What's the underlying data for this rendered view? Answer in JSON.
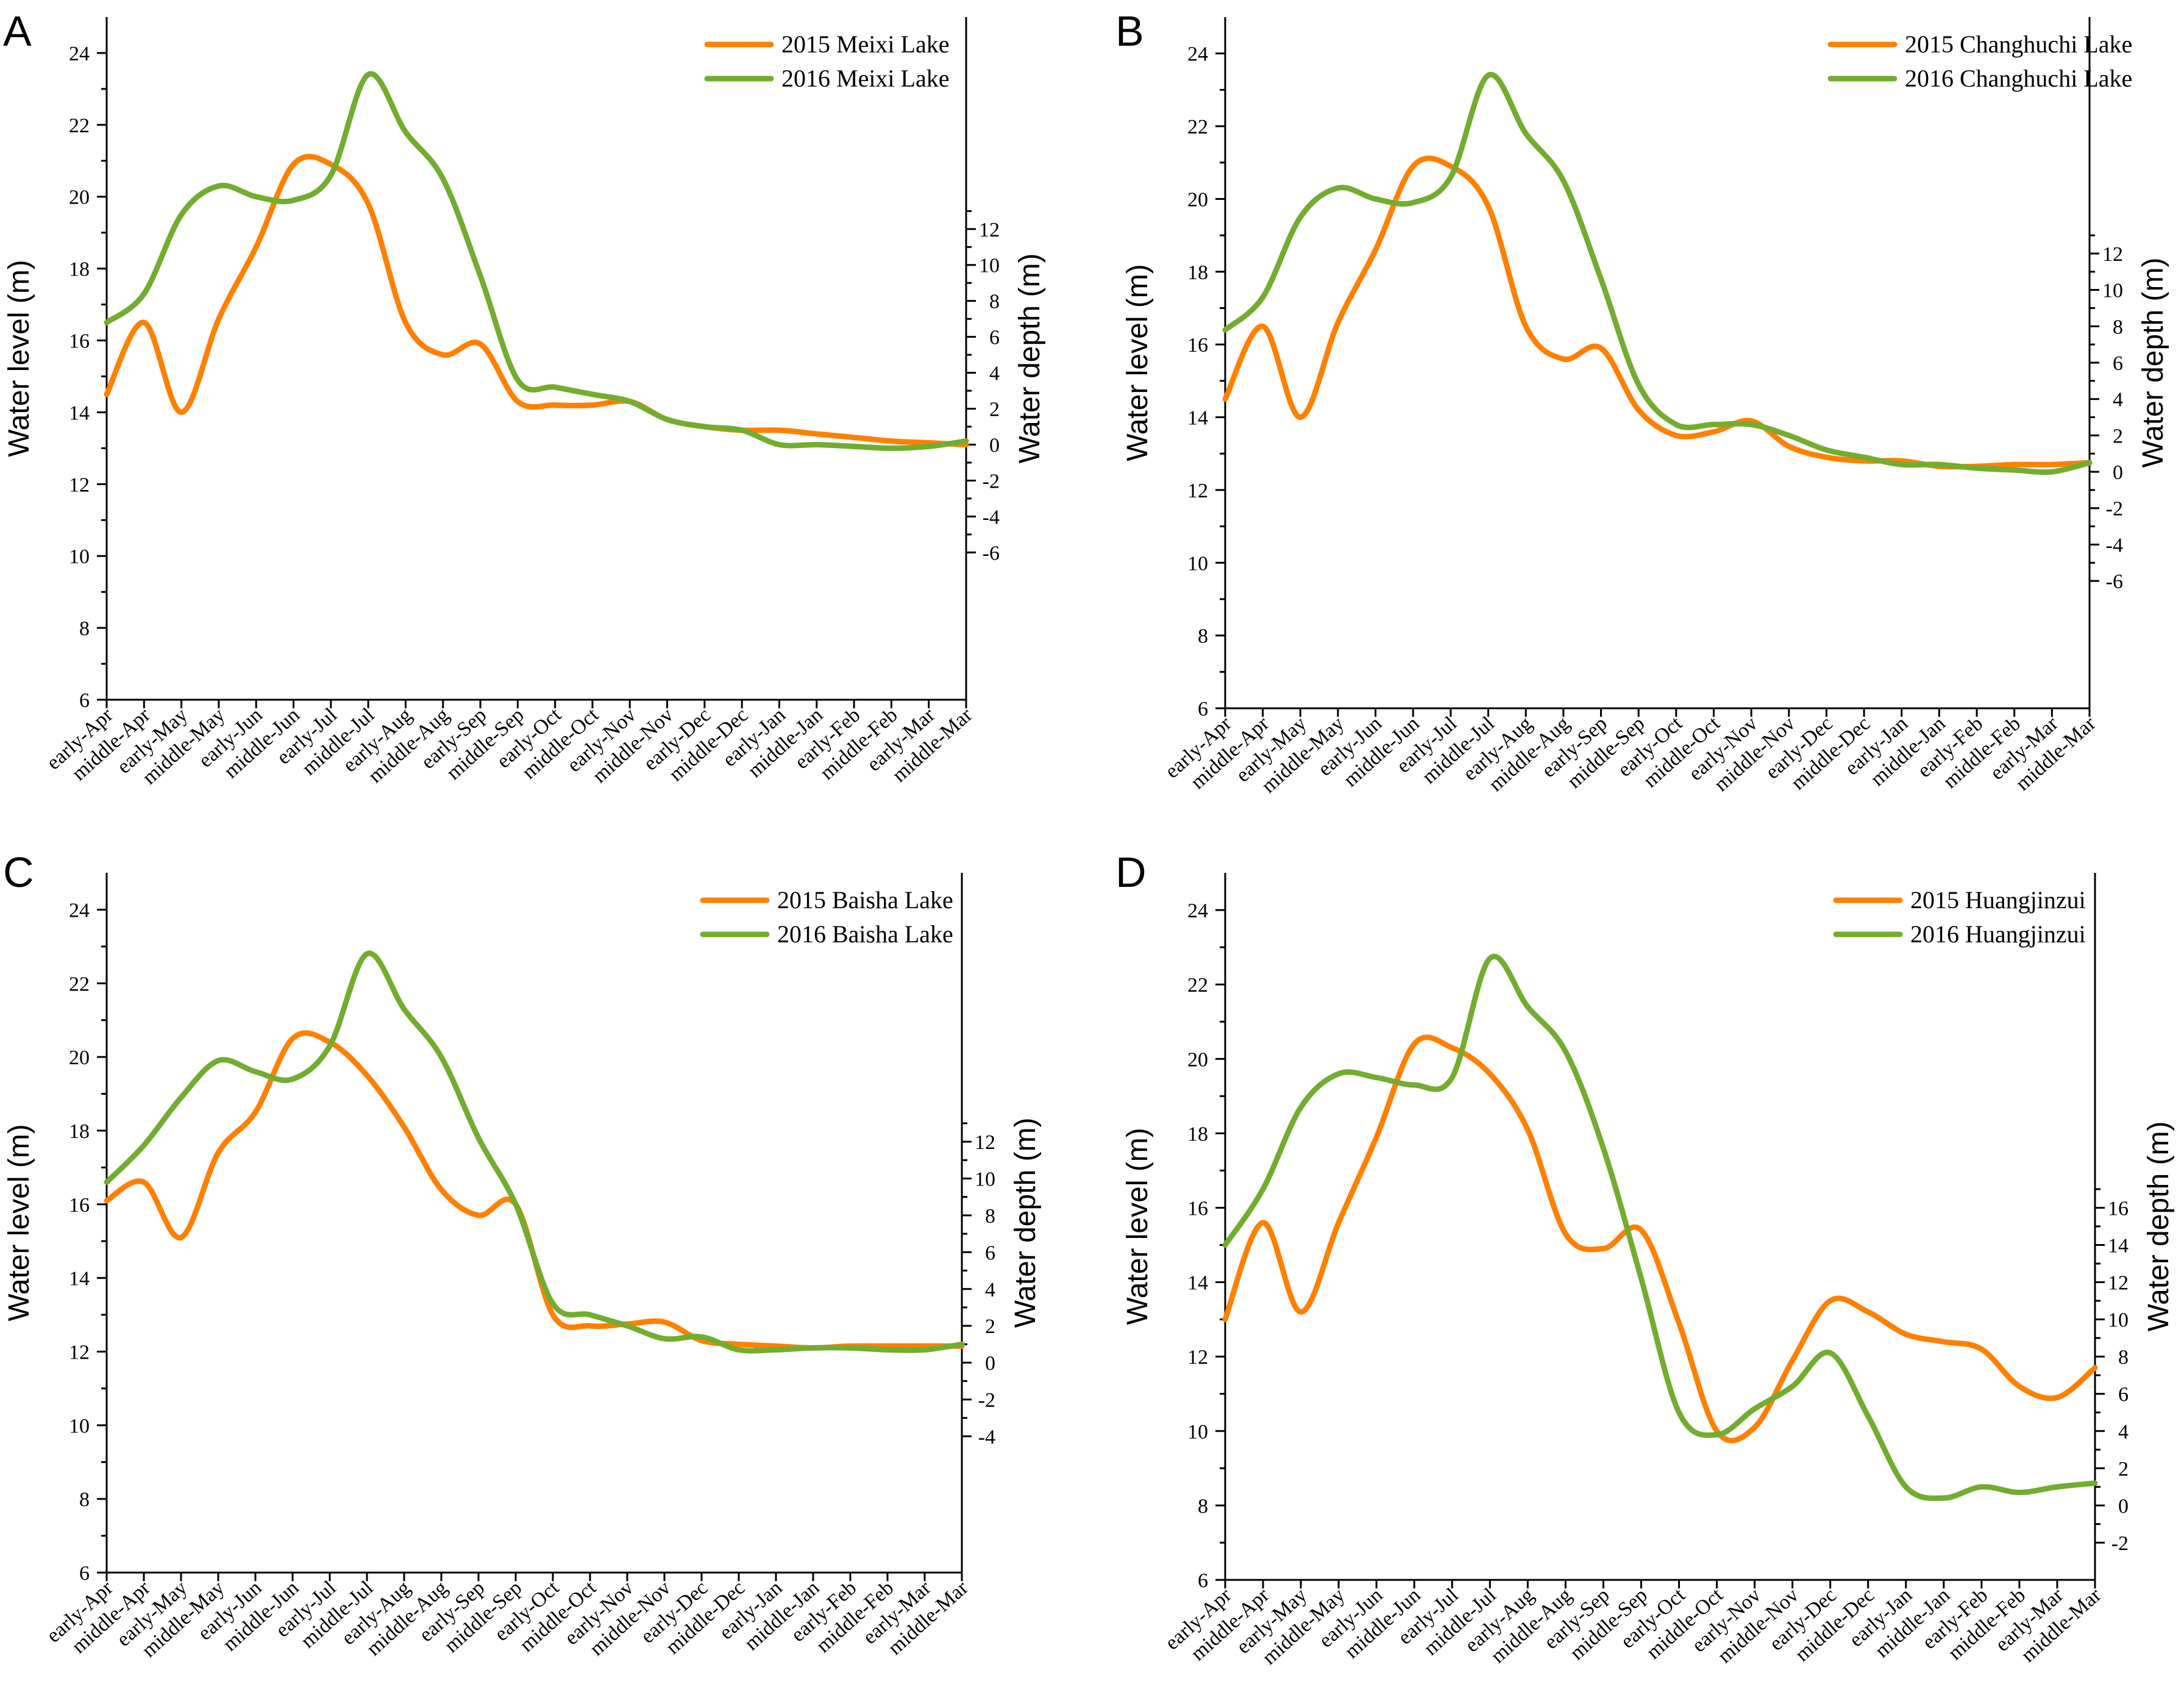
{
  "figure": {
    "colors": {
      "s2015": "#ff8000",
      "s2016": "#72ad2f"
    }
  },
  "chart_data": [
    {
      "type": "line",
      "panel": "A",
      "ylabel": "Water level (m)",
      "y2label": "Water depth (m)",
      "ylim": [
        6,
        25
      ],
      "yticks": [
        6,
        8,
        10,
        12,
        14,
        16,
        18,
        20,
        22,
        24
      ],
      "y2ticks": [
        -6,
        -4,
        -2,
        0,
        2,
        4,
        6,
        8,
        10,
        12
      ],
      "y2_zero_level": 13.1,
      "categories": [
        "early-Apr",
        "middle-Apr",
        "early-May",
        "middle-May",
        "early-Jun",
        "middle-Jun",
        "early-Jul",
        "middle-Jul",
        "early-Aug",
        "middle-Aug",
        "early-Sep",
        "middle-Sep",
        "early-Oct",
        "middle-Oct",
        "early-Nov",
        "middle-Nov",
        "early-Dec",
        "middle-Dec",
        "early-Jan",
        "middle-Jan",
        "early-Feb",
        "middle-Feb",
        "early-Mar",
        "middle-Mar"
      ],
      "legend_position": "top-right",
      "series": [
        {
          "name": "2015 Meixi  Lake",
          "values": [
            14.5,
            16.5,
            14.0,
            16.6,
            18.6,
            20.9,
            20.9,
            19.8,
            16.5,
            15.6,
            15.9,
            14.3,
            14.2,
            14.2,
            14.3,
            13.8,
            13.6,
            13.5,
            13.5,
            13.4,
            13.3,
            13.2,
            13.15,
            13.1
          ]
        },
        {
          "name": "2016 Meixi  Lake",
          "values": [
            16.5,
            17.3,
            19.5,
            20.3,
            20.0,
            19.9,
            20.6,
            23.4,
            21.8,
            20.5,
            17.8,
            14.9,
            14.7,
            14.5,
            14.3,
            13.8,
            13.6,
            13.5,
            13.1,
            13.1,
            13.05,
            13.0,
            13.05,
            13.2
          ]
        }
      ]
    },
    {
      "type": "line",
      "panel": "B",
      "ylabel": "Water level (m)",
      "y2label": "Water depth (m)",
      "ylim": [
        6,
        25
      ],
      "yticks": [
        6,
        8,
        10,
        12,
        14,
        16,
        18,
        20,
        22,
        24
      ],
      "y2ticks": [
        -6,
        -4,
        -2,
        0,
        2,
        4,
        6,
        8,
        10,
        12
      ],
      "y2_zero_level": 12.5,
      "categories": [
        "early-Apr",
        "middle-Apr",
        "early-May",
        "middle-May",
        "early-Jun",
        "middle-Jun",
        "early-Jul",
        "middle-Jul",
        "early-Aug",
        "middle-Aug",
        "early-Sep",
        "middle-Sep",
        "early-Oct",
        "middle-Oct",
        "early-Nov",
        "middle-Nov",
        "early-Dec",
        "middle-Dec",
        "early-Jan",
        "middle-Jan",
        "early-Feb",
        "middle-Feb",
        "early-Mar",
        "middle-Mar"
      ],
      "legend_position": "top-right",
      "series": [
        {
          "name": "2015 Changhuchi  Lake",
          "values": [
            14.5,
            16.5,
            14.0,
            16.6,
            18.6,
            20.9,
            20.9,
            19.8,
            16.5,
            15.6,
            15.9,
            14.2,
            13.5,
            13.6,
            13.9,
            13.2,
            12.9,
            12.8,
            12.8,
            12.65,
            12.65,
            12.7,
            12.7,
            12.75
          ]
        },
        {
          "name": "2016 Changhuchi  Lake",
          "values": [
            16.4,
            17.3,
            19.5,
            20.3,
            20.0,
            19.9,
            20.6,
            23.4,
            21.8,
            20.5,
            17.8,
            14.9,
            13.8,
            13.8,
            13.8,
            13.5,
            13.1,
            12.9,
            12.7,
            12.7,
            12.6,
            12.55,
            12.5,
            12.75
          ]
        }
      ]
    },
    {
      "type": "line",
      "panel": "C",
      "ylabel": "Water level (m)",
      "y2label": "Water depth (m)",
      "ylim": [
        6,
        25
      ],
      "yticks": [
        6,
        8,
        10,
        12,
        14,
        16,
        18,
        20,
        22,
        24
      ],
      "y2ticks": [
        -4,
        -2,
        0,
        2,
        4,
        6,
        8,
        10,
        12
      ],
      "y2_zero_level": 11.7,
      "categories": [
        "early-Apr",
        "middle-Apr",
        "early-May",
        "middle-May",
        "early-Jun",
        "middle-Jun",
        "early-Jul",
        "middle-Jul",
        "early-Aug",
        "middle-Aug",
        "early-Sep",
        "middle-Sep",
        "early-Oct",
        "middle-Oct",
        "early-Nov",
        "middle-Nov",
        "early-Dec",
        "middle-Dec",
        "early-Jan",
        "middle-Jan",
        "early-Feb",
        "middle-Feb",
        "early-Mar",
        "middle-Mar"
      ],
      "legend_position": "top-right",
      "series": [
        {
          "name": "2015 Baisha  Lake",
          "values": [
            16.1,
            16.6,
            15.1,
            17.4,
            18.5,
            20.5,
            20.4,
            19.5,
            18.1,
            16.4,
            15.7,
            16.0,
            13.0,
            12.7,
            12.75,
            12.8,
            12.3,
            12.2,
            12.15,
            12.1,
            12.15,
            12.15,
            12.15,
            12.15
          ]
        },
        {
          "name": "2016 Baisha  Lake",
          "values": [
            16.6,
            17.6,
            18.9,
            19.9,
            19.6,
            19.4,
            20.3,
            22.8,
            21.3,
            20.0,
            17.8,
            16.0,
            13.3,
            13.0,
            12.7,
            12.35,
            12.4,
            12.05,
            12.05,
            12.1,
            12.1,
            12.05,
            12.05,
            12.2
          ]
        }
      ]
    },
    {
      "type": "line",
      "panel": "D",
      "ylabel": "Water level (m)",
      "y2label": "Water depth (m)",
      "ylim": [
        6,
        25
      ],
      "yticks": [
        6,
        8,
        10,
        12,
        14,
        16,
        18,
        20,
        22,
        24
      ],
      "y2ticks": [
        -2,
        0,
        2,
        4,
        6,
        8,
        10,
        12,
        14,
        16
      ],
      "y2_zero_level": 8.0,
      "categories": [
        "early-Apr",
        "middle-Apr",
        "early-May",
        "middle-May",
        "early-Jun",
        "middle-Jun",
        "early-Jul",
        "middle-Jul",
        "early-Aug",
        "middle-Aug",
        "early-Sep",
        "middle-Sep",
        "early-Oct",
        "middle-Oct",
        "early-Nov",
        "middle-Nov",
        "early-Dec",
        "middle-Dec",
        "early-Jan",
        "middle-Jan",
        "early-Feb",
        "middle-Feb",
        "early-Mar",
        "middle-Mar"
      ],
      "legend_position": "top-right",
      "series": [
        {
          "name": "2015 Huangjinzui",
          "values": [
            13.0,
            15.6,
            13.2,
            15.6,
            17.9,
            20.4,
            20.3,
            19.6,
            18.1,
            15.3,
            14.9,
            15.4,
            12.9,
            10.0,
            10.1,
            11.9,
            13.5,
            13.2,
            12.6,
            12.4,
            12.2,
            11.2,
            10.9,
            11.7
          ]
        },
        {
          "name": "2016 Huangjinzui",
          "values": [
            15.0,
            16.5,
            18.7,
            19.6,
            19.5,
            19.3,
            19.5,
            22.7,
            21.4,
            20.2,
            17.6,
            14.1,
            10.5,
            9.9,
            10.6,
            11.2,
            12.1,
            10.4,
            8.5,
            8.2,
            8.5,
            8.35,
            8.5,
            8.6
          ]
        }
      ]
    }
  ]
}
